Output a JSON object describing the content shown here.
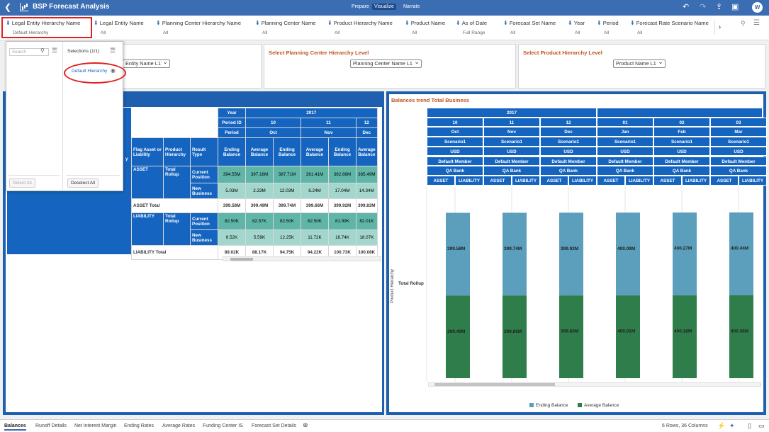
{
  "app": {
    "title": "BSP Forecast Analysis",
    "tabs": [
      "Prepare",
      "Visualize",
      "Narrate"
    ],
    "active_tab": "Visualize",
    "avatar": "W"
  },
  "filters": [
    {
      "label": "Legal Entity Hierarchy Name",
      "value": "Default Hierarchy"
    },
    {
      "label": "Legal Entity Name",
      "value": "All"
    },
    {
      "label": "Planning Center Hierarchy Name",
      "value": "All"
    },
    {
      "label": "Planning Center Name",
      "value": "All"
    },
    {
      "label": "Product Hierarchy Name",
      "value": "All"
    },
    {
      "label": "Product Name",
      "value": "All"
    },
    {
      "label": "As of Date",
      "value": "Full Range"
    },
    {
      "label": "Forecast Set Name",
      "value": "All"
    },
    {
      "label": "Year",
      "value": "All"
    },
    {
      "label": "Period",
      "value": "All"
    },
    {
      "label": "Forecast Rate Scenario Name",
      "value": "All"
    }
  ],
  "popup": {
    "search_placeholder": "Search",
    "selections_label": "Selections (1/1)",
    "selected_item": "Default Hierarchy",
    "select_all": "Select All",
    "deselect_all": "Deselect All"
  },
  "selectors": [
    {
      "title": "",
      "value": "Entity Name L1"
    },
    {
      "title": "Select Planning Center Hierarchy Level",
      "value": "Planning Center Name L1"
    },
    {
      "title": "Select Product Hierarchy Level",
      "value": "Product Name L1"
    }
  ],
  "pivot": {
    "year": "2017",
    "labels": {
      "year": "Year",
      "period_id": "Period ID",
      "period": "Period",
      "flag": "Flag Asset or Liability",
      "product": "Product Hierarchy",
      "result": "Result Type",
      "partial_col": "y"
    },
    "period_ids": [
      "10",
      "11",
      "12"
    ],
    "periods": [
      "Oct",
      "Nov",
      "Dec"
    ],
    "measures": [
      "Ending Balance",
      "Average Balance",
      "Ending Balance",
      "Average Balance",
      "Ending Balance",
      "Average Balance"
    ],
    "rows": [
      {
        "flag": "ASSET",
        "product": "Total Rollup",
        "result": "Current Position",
        "values": [
          "394.55M",
          "397.16M",
          "387.71M",
          "391.41M",
          "382.88M",
          "385.49M"
        ]
      },
      {
        "flag": "",
        "product": "",
        "result": "New Business",
        "values": [
          "5.03M",
          "2.33M",
          "12.03M",
          "8.24M",
          "17.04M",
          "14.34M"
        ]
      },
      {
        "total": "ASSET Total",
        "values": [
          "399.58M",
          "399.49M",
          "399.74M",
          "399.66M",
          "399.92M",
          "399.83M"
        ]
      },
      {
        "flag": "LIABILITY",
        "product": "Total Rollup",
        "result": "Current Position",
        "values": [
          "82.50K",
          "82.57K",
          "82.50K",
          "82.50K",
          "81.99K",
          "82.01K"
        ]
      },
      {
        "flag": "",
        "product": "",
        "result": "New Business",
        "values": [
          "6.52K",
          "5.59K",
          "12.25K",
          "11.72K",
          "18.74K",
          "18.07K"
        ]
      },
      {
        "total": "LIABILITY Total",
        "values": [
          "89.02K",
          "88.17K",
          "94.75K",
          "94.22K",
          "100.73K",
          "100.08K"
        ]
      }
    ]
  },
  "trend": {
    "title": "Balances trend Total Business",
    "year": "2017",
    "period_ids": [
      "10",
      "11",
      "12",
      "01",
      "02",
      "03"
    ],
    "periods": [
      "Oct",
      "Nov",
      "Dec",
      "Jan",
      "Feb",
      "Mar"
    ],
    "scenario": "Scenario1",
    "currency": "USD",
    "member": "Default Member",
    "bank": "QA Bank",
    "flags": [
      "ASSET",
      "LIABILITY"
    ],
    "y_label": "Product Hierarchy",
    "row_label": "Total Rollup"
  },
  "chart_data": {
    "type": "bar",
    "title": "Balances trend Total Business",
    "categories": [
      "Oct",
      "Nov",
      "Dec",
      "Jan",
      "Feb",
      "Mar"
    ],
    "series": [
      {
        "name": "Ending Balance",
        "color": "#5b9fbd",
        "labels": [
          "399.58M",
          "399.74M",
          "399.92M",
          "400.09M",
          "400.27M",
          "400.44M"
        ],
        "values": [
          399.58,
          399.74,
          399.92,
          400.09,
          400.27,
          400.44
        ]
      },
      {
        "name": "Average Balance",
        "color": "#2e7d4a",
        "labels": [
          "399.49M",
          "399.66M",
          "399.83M",
          "400.01M",
          "400.18M",
          "400.36M"
        ],
        "values": [
          399.49,
          399.66,
          399.83,
          400.01,
          400.18,
          400.36
        ]
      }
    ],
    "stacked": true,
    "legend": "bottom-center"
  },
  "bottom": {
    "tabs": [
      "Balances",
      "Runoff Details",
      "Net Interest Margin",
      "Ending Rates",
      "Average Rates",
      "Funding Center IS",
      "Forecast Set Details"
    ],
    "active": "Balances",
    "status": "6 Rows, 36 Columns"
  }
}
